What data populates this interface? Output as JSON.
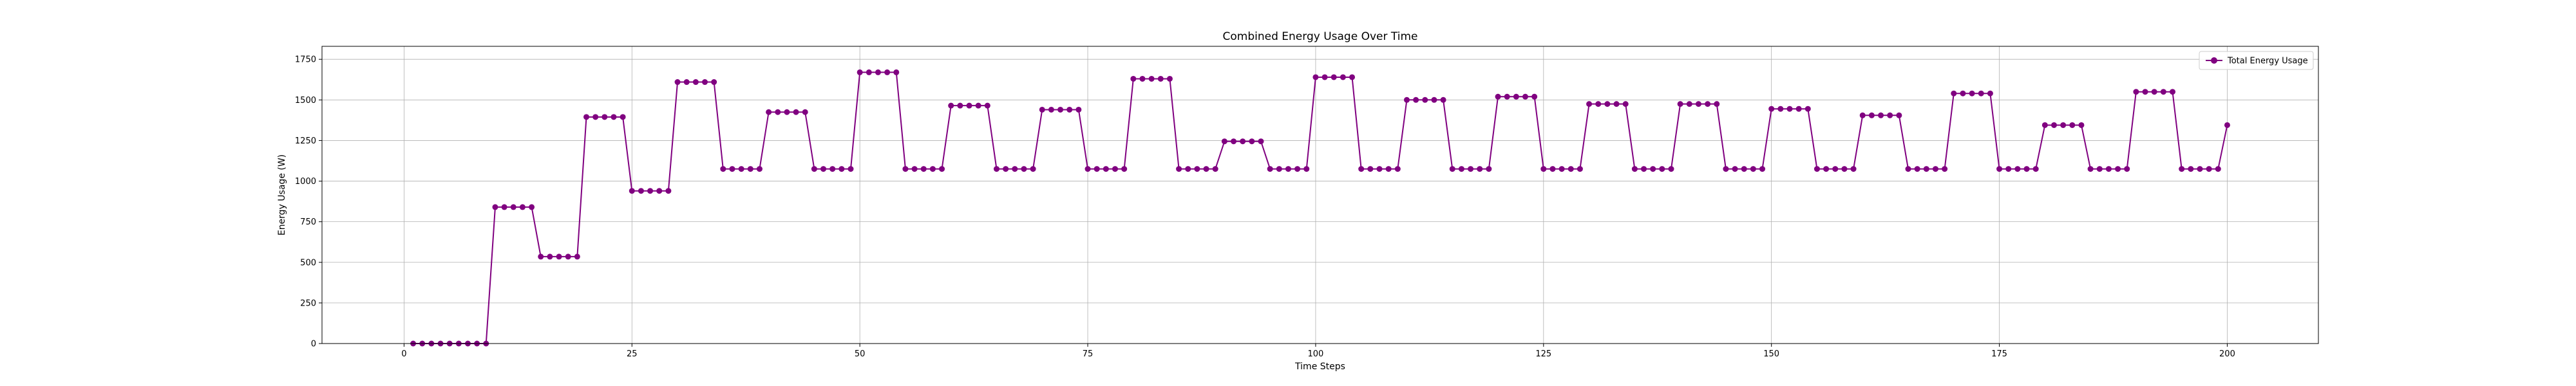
{
  "chart_data": {
    "type": "line",
    "title": "Combined Energy Usage Over Time",
    "xlabel": "Time Steps",
    "ylabel": "Energy Usage (W)",
    "xlim": [
      -9,
      210
    ],
    "ylim": [
      0,
      1830
    ],
    "x_ticks": [
      0,
      25,
      50,
      75,
      100,
      125,
      150,
      175,
      200
    ],
    "y_ticks": [
      0,
      250,
      500,
      750,
      1000,
      1250,
      1500,
      1750
    ],
    "grid": true,
    "legend_position": "top-right",
    "series": [
      {
        "name": "Total Energy Usage",
        "color": "#800080",
        "marker": "circle",
        "x_start": 1,
        "x_step": 1,
        "values": [
          0,
          0,
          0,
          0,
          0,
          0,
          0,
          0,
          0,
          840,
          840,
          840,
          840,
          840,
          535,
          535,
          535,
          535,
          535,
          1395,
          1395,
          1395,
          1395,
          1395,
          940,
          940,
          940,
          940,
          940,
          1610,
          1610,
          1610,
          1610,
          1610,
          1075,
          1075,
          1075,
          1075,
          1075,
          1425,
          1425,
          1425,
          1425,
          1425,
          1075,
          1075,
          1075,
          1075,
          1075,
          1670,
          1670,
          1670,
          1670,
          1670,
          1075,
          1075,
          1075,
          1075,
          1075,
          1465,
          1465,
          1465,
          1465,
          1465,
          1075,
          1075,
          1075,
          1075,
          1075,
          1440,
          1440,
          1440,
          1440,
          1440,
          1075,
          1075,
          1075,
          1075,
          1075,
          1630,
          1630,
          1630,
          1630,
          1630,
          1075,
          1075,
          1075,
          1075,
          1075,
          1245,
          1245,
          1245,
          1245,
          1245,
          1075,
          1075,
          1075,
          1075,
          1075,
          1640,
          1640,
          1640,
          1640,
          1640,
          1075,
          1075,
          1075,
          1075,
          1075,
          1500,
          1500,
          1500,
          1500,
          1500,
          1075,
          1075,
          1075,
          1075,
          1075,
          1520,
          1520,
          1520,
          1520,
          1520,
          1075,
          1075,
          1075,
          1075,
          1075,
          1475,
          1475,
          1475,
          1475,
          1475,
          1075,
          1075,
          1075,
          1075,
          1075,
          1475,
          1475,
          1475,
          1475,
          1475,
          1075,
          1075,
          1075,
          1075,
          1075,
          1445,
          1445,
          1445,
          1445,
          1445,
          1075,
          1075,
          1075,
          1075,
          1075,
          1405,
          1405,
          1405,
          1405,
          1405,
          1075,
          1075,
          1075,
          1075,
          1075,
          1540,
          1540,
          1540,
          1540,
          1540,
          1075,
          1075,
          1075,
          1075,
          1075,
          1345,
          1345,
          1345,
          1345,
          1345,
          1075,
          1075,
          1075,
          1075,
          1075,
          1550,
          1550,
          1550,
          1550,
          1550,
          1075,
          1075,
          1075,
          1075,
          1075,
          1345
        ]
      }
    ]
  }
}
